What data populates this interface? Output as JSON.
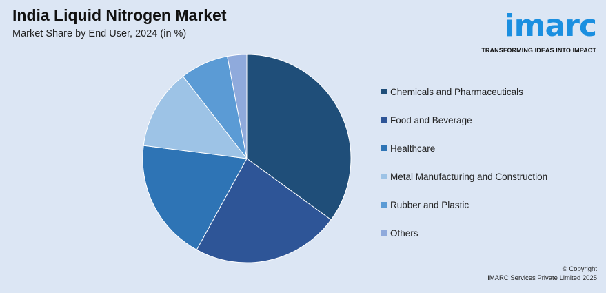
{
  "header": {
    "title": "India Liquid Nitrogen Market",
    "subtitle": "Market Share by End User, 2024 (in %)"
  },
  "logo": {
    "wordmark": "imarc",
    "tagline": "TRANSFORMING IDEAS INTO IMPACT",
    "color": "#1b8fe0"
  },
  "chart_data": {
    "type": "pie",
    "title": "India Liquid Nitrogen Market",
    "subtitle": "Market Share by End User, 2024 (in %)",
    "start_angle_deg": 0,
    "direction": "clockwise",
    "legend_position": "right",
    "slices": [
      {
        "label": "Chemicals and Pharmaceuticals",
        "value": 35,
        "color": "#1f4e79"
      },
      {
        "label": "Food and Beverage",
        "value": 23,
        "color": "#2e5597"
      },
      {
        "label": "Healthcare",
        "value": 19,
        "color": "#2e74b5"
      },
      {
        "label": "Metal Manufacturing and Construction",
        "value": 12.5,
        "color": "#9dc3e6"
      },
      {
        "label": "Rubber and Plastic",
        "value": 7.5,
        "color": "#5b9bd5"
      },
      {
        "label": "Others",
        "value": 3,
        "color": "#8faadc"
      }
    ]
  },
  "footer": {
    "copyright_line1": "© Copyright",
    "copyright_line2": "IMARC Services Private Limited 2025"
  }
}
